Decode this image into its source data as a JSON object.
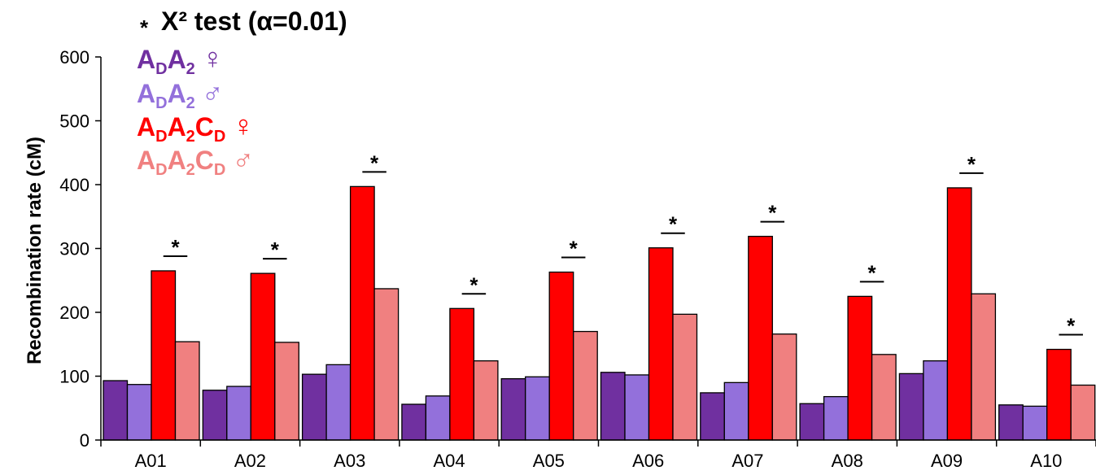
{
  "chart_data": {
    "type": "bar",
    "ylabel": "Recombination rate (cM)",
    "ylim": [
      0,
      600
    ],
    "yticks": [
      0,
      100,
      200,
      300,
      400,
      500,
      600
    ],
    "categories": [
      "A01",
      "A02",
      "A03",
      "A04",
      "A05",
      "A06",
      "A07",
      "A08",
      "A09",
      "A10"
    ],
    "series": [
      {
        "color": "#7030A0",
        "values": [
          93,
          78,
          103,
          56,
          96,
          106,
          74,
          57,
          104,
          55
        ]
      },
      {
        "color": "#9370DB",
        "values": [
          87,
          84,
          118,
          69,
          99,
          102,
          90,
          68,
          124,
          53
        ]
      },
      {
        "color": "#FF0000",
        "values": [
          265,
          261,
          397,
          206,
          263,
          301,
          319,
          225,
          395,
          142
        ]
      },
      {
        "color": "#F08080",
        "values": [
          154,
          153,
          237,
          124,
          170,
          197,
          166,
          134,
          229,
          86
        ]
      }
    ],
    "significance": {
      "marker": "*",
      "categories": [
        "A01",
        "A02",
        "A03",
        "A04",
        "A05",
        "A06",
        "A07",
        "A08",
        "A09",
        "A10"
      ]
    },
    "legend": {
      "test_label": "X² test (α=0.01)",
      "items": [
        {
          "parts": [
            "A",
            "D",
            "A",
            "2"
          ],
          "symbol": "♀",
          "color": "#7030A0"
        },
        {
          "parts": [
            "A",
            "D",
            "A",
            "2"
          ],
          "symbol": "♂",
          "color": "#9370DB"
        },
        {
          "parts": [
            "A",
            "D",
            "A",
            "2",
            "C",
            "D"
          ],
          "symbol": "♀",
          "color": "#FF0000"
        },
        {
          "parts": [
            "A",
            "D",
            "A",
            "2",
            "C",
            "D"
          ],
          "symbol": "♂",
          "color": "#F08080"
        }
      ]
    }
  }
}
